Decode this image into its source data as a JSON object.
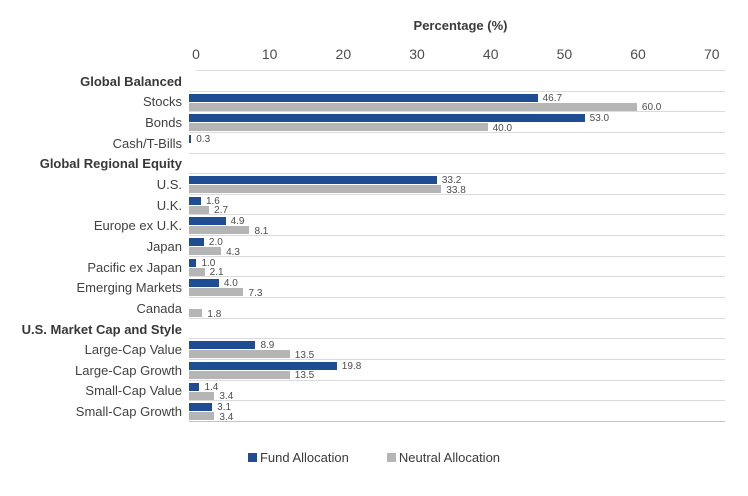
{
  "chart_data": {
    "type": "bar",
    "orientation": "horizontal",
    "axis_title": "Percentage (%)",
    "x_ticks": [
      "0",
      "10",
      "20",
      "30",
      "40",
      "50",
      "60",
      "70"
    ],
    "x_tick_values": [
      0,
      10,
      20,
      30,
      40,
      50,
      60,
      70
    ],
    "x_max": 71.8,
    "grid": true,
    "legend_position": "bottom-center",
    "legend": [
      {
        "label": "Fund Allocation",
        "color": "#1e4d94"
      },
      {
        "label": "Neutral Allocation",
        "color": "#b5b5b5"
      }
    ],
    "rows": [
      {
        "kind": "header",
        "label": "Global Balanced"
      },
      {
        "kind": "data",
        "label": "Stocks",
        "fund": 46.7,
        "fund_label": "46.7",
        "neutral": 60.0,
        "neutral_label": "60.0"
      },
      {
        "kind": "data",
        "label": "Bonds",
        "fund": 53.0,
        "fund_label": "53.0",
        "neutral": 40.0,
        "neutral_label": "40.0"
      },
      {
        "kind": "data",
        "label": "Cash/T-Bills",
        "fund": 0.3,
        "fund_label": "0.3",
        "neutral": null,
        "neutral_label": null
      },
      {
        "kind": "header",
        "label": "Global Regional Equity"
      },
      {
        "kind": "data",
        "label": "U.S.",
        "fund": 33.2,
        "fund_label": "33.2",
        "neutral": 33.8,
        "neutral_label": "33.8"
      },
      {
        "kind": "data",
        "label": "U.K.",
        "fund": 1.6,
        "fund_label": "1.6",
        "neutral": 2.7,
        "neutral_label": "2.7"
      },
      {
        "kind": "data",
        "label": "Europe ex U.K.",
        "fund": 4.9,
        "fund_label": "4.9",
        "neutral": 8.1,
        "neutral_label": "8.1"
      },
      {
        "kind": "data",
        "label": "Japan",
        "fund": 2.0,
        "fund_label": "2.0",
        "neutral": 4.3,
        "neutral_label": "4.3"
      },
      {
        "kind": "data",
        "label": "Pacific ex Japan",
        "fund": 1.0,
        "fund_label": "1.0",
        "neutral": 2.1,
        "neutral_label": "2.1"
      },
      {
        "kind": "data",
        "label": "Emerging Markets",
        "fund": 4.0,
        "fund_label": "4.0",
        "neutral": 7.3,
        "neutral_label": "7.3"
      },
      {
        "kind": "data",
        "label": "Canada",
        "fund": null,
        "fund_label": null,
        "neutral": 1.8,
        "neutral_label": "1.8"
      },
      {
        "kind": "header",
        "label": "U.S. Market Cap and Style"
      },
      {
        "kind": "data",
        "label": "Large-Cap Value",
        "fund": 8.9,
        "fund_label": "8.9",
        "neutral": 13.5,
        "neutral_label": "13.5"
      },
      {
        "kind": "data",
        "label": "Large-Cap Growth",
        "fund": 19.8,
        "fund_label": "19.8",
        "neutral": 13.5,
        "neutral_label": "13.5"
      },
      {
        "kind": "data",
        "label": "Small-Cap Value",
        "fund": 1.4,
        "fund_label": "1.4",
        "neutral": 3.4,
        "neutral_label": "3.4"
      },
      {
        "kind": "data",
        "label": "Small-Cap Growth",
        "fund": 3.1,
        "fund_label": "3.1",
        "neutral": 3.4,
        "neutral_label": "3.4"
      }
    ]
  },
  "colors": {
    "fund": "#1e4d94",
    "neutral": "#b5b5b5",
    "gridline": "#dbdbdb",
    "text": "#414141"
  }
}
